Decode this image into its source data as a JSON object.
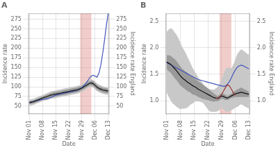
{
  "chart_data": [
    {
      "type": "line",
      "title": "A",
      "xlabel": "Date",
      "ylabel": "Incidence rate",
      "y2label": "Incidence rate England",
      "categories": [
        "Nov 01",
        null,
        null,
        null,
        null,
        null,
        null,
        "Nov 08",
        null,
        null,
        null,
        null,
        null,
        null,
        "Nov 15",
        null,
        null,
        null,
        null,
        null,
        null,
        "Nov 22",
        null,
        null,
        null,
        null,
        null,
        null,
        "Nov 29",
        null,
        null,
        null,
        null,
        null,
        null,
        "Dec 06",
        null,
        null,
        null,
        null,
        null,
        null,
        "Dec 13"
      ],
      "ylim": [
        30,
        290
      ],
      "yticks": [
        50,
        75,
        100,
        125,
        150,
        175,
        200,
        225,
        250,
        275
      ],
      "y2lim": [
        30,
        290
      ],
      "y2ticks": [
        50,
        75,
        100,
        125,
        150,
        175,
        200,
        225,
        250,
        275
      ],
      "grid": true,
      "band": {
        "x": [
          27,
          33
        ],
        "color": "#d9837a"
      },
      "series": [
        {
          "type": "area",
          "color": "#c8c8c8",
          "lower": [
            51,
            52,
            53,
            55,
            57,
            59,
            61,
            63,
            65,
            65,
            67,
            69,
            69,
            70,
            71,
            72,
            73,
            74,
            75,
            76,
            77,
            78,
            79,
            80,
            81,
            82,
            83,
            85,
            87,
            90,
            93,
            96,
            99,
            100,
            98,
            94,
            89,
            86,
            84,
            82,
            81,
            80,
            79
          ],
          "upper": [
            67,
            68,
            69,
            71,
            73,
            75,
            77,
            79,
            81,
            83,
            85,
            87,
            89,
            90,
            91,
            92,
            93,
            94,
            95,
            96,
            97,
            98,
            99,
            100,
            101,
            102,
            103,
            105,
            107,
            110,
            113,
            116,
            119,
            120,
            118,
            114,
            109,
            106,
            104,
            102,
            100,
            99,
            98
          ]
        },
        {
          "type": "area",
          "color": "#999999",
          "lower": [
            55,
            56,
            57,
            59,
            61,
            63,
            65,
            67,
            69,
            69,
            71,
            73,
            73,
            74,
            75,
            76,
            77,
            78,
            79,
            80,
            81,
            82,
            83,
            84,
            85,
            86,
            87,
            89,
            91,
            94,
            97,
            100,
            103,
            104,
            102,
            98,
            93,
            90,
            88,
            86,
            85,
            84,
            83
          ],
          "upper": [
            63,
            64,
            65,
            67,
            69,
            71,
            73,
            75,
            77,
            79,
            81,
            83,
            85,
            86,
            87,
            88,
            89,
            90,
            91,
            92,
            93,
            94,
            95,
            96,
            97,
            98,
            99,
            101,
            103,
            106,
            109,
            112,
            115,
            116,
            114,
            110,
            105,
            102,
            100,
            98,
            97,
            96,
            95
          ]
        },
        {
          "type": "line",
          "color": "#4455bb",
          "values": [
            60,
            61,
            62,
            63,
            64,
            65,
            66,
            67,
            68,
            69,
            70,
            72,
            74,
            76,
            78,
            80,
            81,
            82,
            83,
            84,
            85,
            86,
            87,
            88,
            89,
            90,
            92,
            95,
            98,
            103,
            108,
            115,
            123,
            128,
            130,
            128,
            125,
            135,
            155,
            185,
            220,
            260,
            290
          ]
        },
        {
          "type": "line",
          "color": "#111111",
          "values": [
            59,
            60,
            61,
            63,
            65,
            67,
            69,
            71,
            73,
            74,
            76,
            78,
            79,
            80,
            81,
            82,
            83,
            84,
            85,
            86,
            87,
            88,
            89,
            90,
            91,
            92,
            93,
            95,
            97,
            100,
            103,
            106,
            109,
            110,
            108,
            104,
            99,
            96,
            94,
            92,
            91,
            90,
            89
          ]
        }
      ]
    },
    {
      "type": "line",
      "title": "B",
      "xlabel": "Date",
      "ylabel": "Incidence rate",
      "y2label": "Incidence rate England",
      "categories": [
        "Nov 01",
        null,
        null,
        null,
        null,
        null,
        null,
        "Nov 08",
        null,
        null,
        null,
        null,
        null,
        null,
        "Nov 15",
        null,
        null,
        null,
        null,
        null,
        null,
        "Nov 22",
        null,
        null,
        null,
        null,
        null,
        null,
        "Nov 29",
        null,
        null,
        null,
        null,
        null,
        null,
        "Dec 06",
        null,
        null,
        null,
        null,
        null,
        null,
        "Dec 13"
      ],
      "ylim": [
        0.75,
        2.65
      ],
      "yticks": [
        {
          "value": 1.0,
          "label": "1.0"
        },
        1.5,
        {
          "value": 2.0,
          "label": "2.0"
        },
        2.5
      ],
      "y2lim": [
        0.75,
        2.65
      ],
      "y2ticks": [
        {
          "value": 1.0,
          "label": "1.0"
        },
        1.5,
        {
          "value": 2.0,
          "label": "2.0"
        },
        2.5
      ],
      "grid": true,
      "band": {
        "x": [
          27,
          33
        ],
        "color": "#d9837a"
      },
      "series": [
        {
          "type": "area",
          "color": "#c8c8c8",
          "lower": [
            1.16,
            1.08,
            1.01,
            0.95,
            0.92,
            0.89,
            0.86,
            0.84,
            0.85,
            0.85,
            0.86,
            0.88,
            0.92,
            0.94,
            0.97,
            0.99,
            0.99,
            0.98,
            0.97,
            0.94,
            0.89,
            0.84,
            0.8,
            0.79,
            0.79,
            0.79,
            0.8,
            0.83,
            0.87,
            0.84,
            0.8,
            0.79,
            0.8,
            0.82,
            0.84,
            0.87,
            0.88,
            0.91,
            0.93,
            0.91,
            0.89,
            0.87,
            0.85
          ],
          "upper": [
            2.3,
            2.34,
            2.37,
            2.35,
            2.3,
            2.25,
            2.18,
            2.1,
            2.01,
            1.95,
            1.88,
            1.8,
            1.72,
            1.64,
            1.57,
            1.51,
            1.45,
            1.4,
            1.35,
            1.3,
            1.27,
            1.24,
            1.22,
            1.21,
            1.21,
            1.23,
            1.26,
            1.31,
            1.41,
            1.5,
            1.6,
            1.63,
            1.62,
            1.61,
            1.68,
            1.78,
            1.88,
            1.93,
            1.97,
            1.95,
            1.92,
            1.89,
            1.87
          ]
        },
        {
          "type": "area",
          "color": "#999999",
          "lower": [
            1.6,
            1.56,
            1.53,
            1.48,
            1.43,
            1.39,
            1.34,
            1.29,
            1.26,
            1.23,
            1.2,
            1.17,
            1.16,
            1.12,
            1.11,
            1.1,
            1.07,
            1.06,
            1.04,
            1.03,
            1.02,
            1.01,
            1.0,
            0.99,
            0.98,
            0.99,
            0.99,
            1.01,
            1.04,
            1.03,
            1.01,
            1.01,
            1.03,
            1.05,
            1.06,
            1.07,
            1.07,
            1.07,
            1.07,
            1.07,
            1.07,
            1.07,
            1.07
          ],
          "upper": [
            1.86,
            1.86,
            1.85,
            1.82,
            1.79,
            1.75,
            1.7,
            1.65,
            1.6,
            1.57,
            1.54,
            1.51,
            1.48,
            1.46,
            1.43,
            1.4,
            1.37,
            1.34,
            1.32,
            1.29,
            1.26,
            1.23,
            1.2,
            1.17,
            1.14,
            1.11,
            1.09,
            1.11,
            1.14,
            1.13,
            1.11,
            1.09,
            1.11,
            1.13,
            1.16,
            1.19,
            1.21,
            1.23,
            1.25,
            1.23,
            1.21,
            1.19,
            1.17
          ]
        },
        {
          "type": "line",
          "color": "#4455bb",
          "values": [
            1.72,
            1.7,
            1.68,
            1.66,
            1.64,
            1.62,
            1.6,
            1.58,
            1.56,
            1.54,
            1.52,
            1.5,
            1.48,
            1.46,
            1.44,
            1.42,
            1.4,
            1.39,
            1.38,
            1.37,
            1.36,
            1.35,
            1.34,
            1.33,
            1.32,
            1.31,
            1.3,
            1.29,
            1.28,
            1.27,
            1.28,
            1.31,
            1.36,
            1.43,
            1.51,
            1.58,
            1.63,
            1.66,
            1.67,
            1.66,
            1.64,
            1.62,
            1.6
          ]
        },
        {
          "type": "line",
          "color": "#111111",
          "values": [
            1.73,
            1.71,
            1.69,
            1.65,
            1.61,
            1.57,
            1.52,
            1.47,
            1.43,
            1.4,
            1.37,
            1.34,
            1.32,
            1.29,
            1.27,
            1.25,
            1.22,
            1.2,
            1.18,
            1.16,
            1.14,
            1.12,
            1.1,
            1.08,
            1.06,
            1.05,
            1.04,
            1.06,
            1.09,
            1.08,
            1.06,
            1.05,
            1.07,
            1.09,
            1.11,
            1.13,
            1.14,
            1.15,
            1.16,
            1.15,
            1.14,
            1.13,
            1.12
          ]
        },
        {
          "type": "line",
          "color": "#993333",
          "values": [
            null,
            null,
            null,
            null,
            null,
            null,
            null,
            null,
            null,
            null,
            null,
            null,
            null,
            null,
            null,
            null,
            null,
            null,
            null,
            null,
            null,
            null,
            null,
            null,
            null,
            1.04,
            1.05,
            1.07,
            1.12,
            1.18,
            1.25,
            1.3,
            1.28,
            1.22,
            1.15,
            1.1,
            null,
            null,
            null,
            null,
            null,
            null,
            null
          ]
        }
      ]
    }
  ]
}
